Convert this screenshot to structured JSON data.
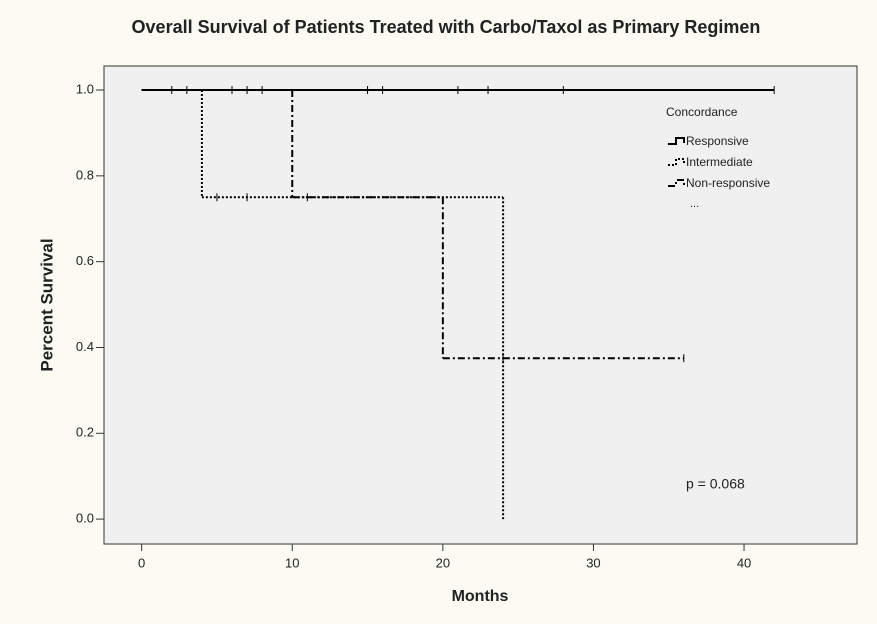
{
  "chart_data": {
    "type": "survival-step",
    "title": "Overall Survival of Patients Treated with Carbo/Taxol as Primary Regimen",
    "x_label": "Months",
    "y_label": "Percent Survival",
    "xlim": [
      -2.5,
      47.5
    ],
    "xticks": [
      0,
      10,
      20,
      30,
      40
    ],
    "ylim": [
      -0.058,
      1.056
    ],
    "yticks": [
      {
        "value": 0,
        "label": "0.0"
      },
      0.2,
      0.4,
      0.6,
      0.8,
      {
        "value": 1,
        "label": "1.0"
      }
    ],
    "legend_title": "Concordance",
    "legend_more": "...",
    "legend_position": "upper right",
    "annotation": "p = 0.068",
    "series": [
      {
        "name": "Responsive",
        "color": "#000000",
        "dash": "solid",
        "x": [
          0,
          42
        ],
        "values": [
          1,
          1
        ],
        "censor_x": [
          2,
          3,
          6,
          7,
          8,
          15,
          16,
          21,
          23,
          28,
          42
        ],
        "censor_values": [
          1,
          1,
          1,
          1,
          1,
          1,
          1,
          1,
          1,
          1,
          1
        ]
      },
      {
        "name": "Intermediate",
        "color": "#000000",
        "dash": "dotted",
        "x": [
          0,
          4,
          24
        ],
        "values": [
          1,
          0.75,
          0
        ],
        "censor_x": [
          5,
          7,
          11
        ],
        "censor_values": [
          0.75,
          0.75,
          0.75
        ]
      },
      {
        "name": "Non-responsive",
        "color": "#000000",
        "dash": "dashdot",
        "x": [
          0,
          10,
          20,
          36
        ],
        "values": [
          1,
          0.75,
          0.375,
          0.375
        ],
        "censor_x": [
          24,
          36
        ],
        "censor_values": [
          0.375,
          0.375
        ]
      }
    ]
  }
}
